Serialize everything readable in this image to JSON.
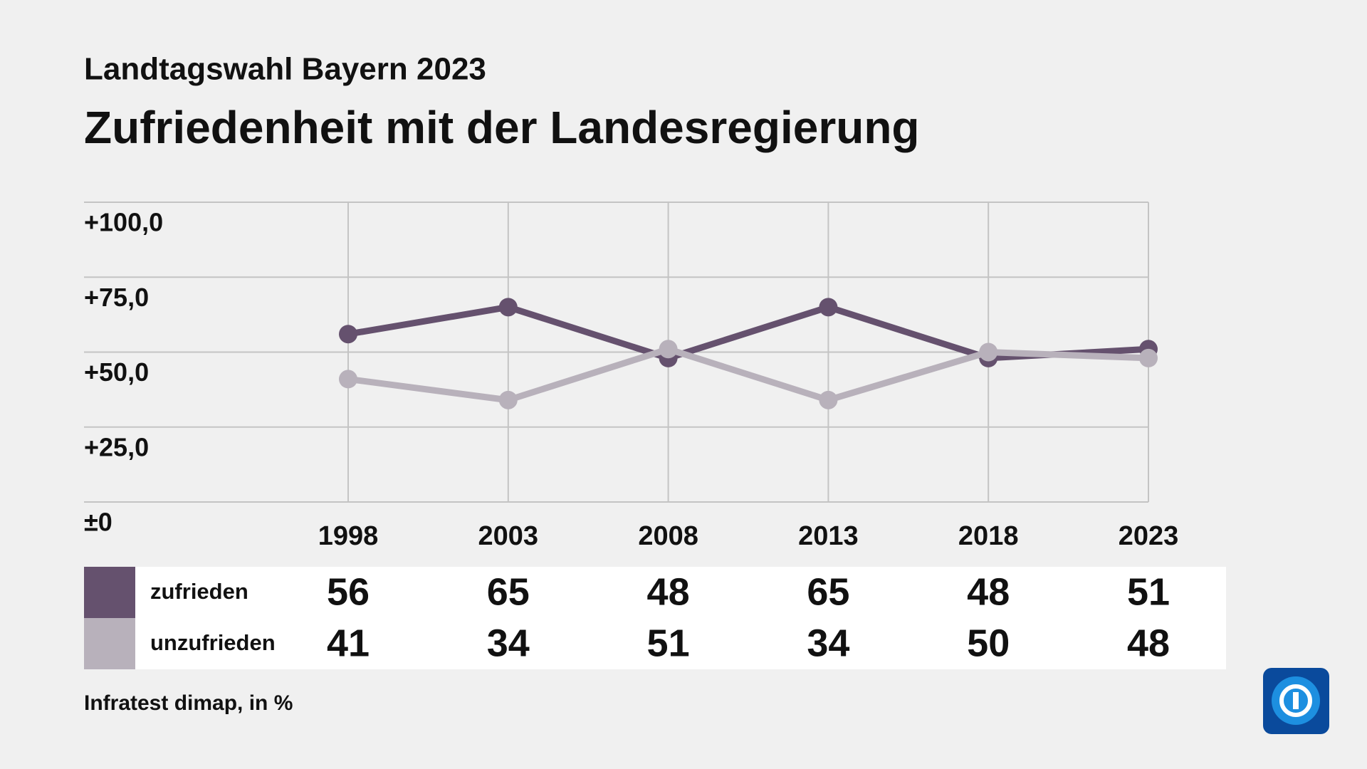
{
  "chart_data": {
    "type": "line",
    "subtitle": "Landtagswahl Bayern 2023",
    "title": "Zufriedenheit mit der Landesregierung",
    "categories": [
      "1998",
      "2003",
      "2008",
      "2013",
      "2018",
      "2023"
    ],
    "series": [
      {
        "name": "zufrieden",
        "color": "#65516e",
        "values": [
          56,
          65,
          48,
          65,
          48,
          51
        ]
      },
      {
        "name": "unzufrieden",
        "color": "#b8b1bb",
        "values": [
          41,
          34,
          51,
          34,
          50,
          48
        ]
      }
    ],
    "ylim": [
      0,
      100
    ],
    "yticks": [
      {
        "value": 0,
        "label": "±0"
      },
      {
        "value": 25,
        "label": "+25,0"
      },
      {
        "value": 50,
        "label": "+50,0"
      },
      {
        "value": 75,
        "label": "+75,0"
      },
      {
        "value": 100,
        "label": "+100,0"
      }
    ],
    "grid": true,
    "source": "Infratest dimap, in %"
  }
}
